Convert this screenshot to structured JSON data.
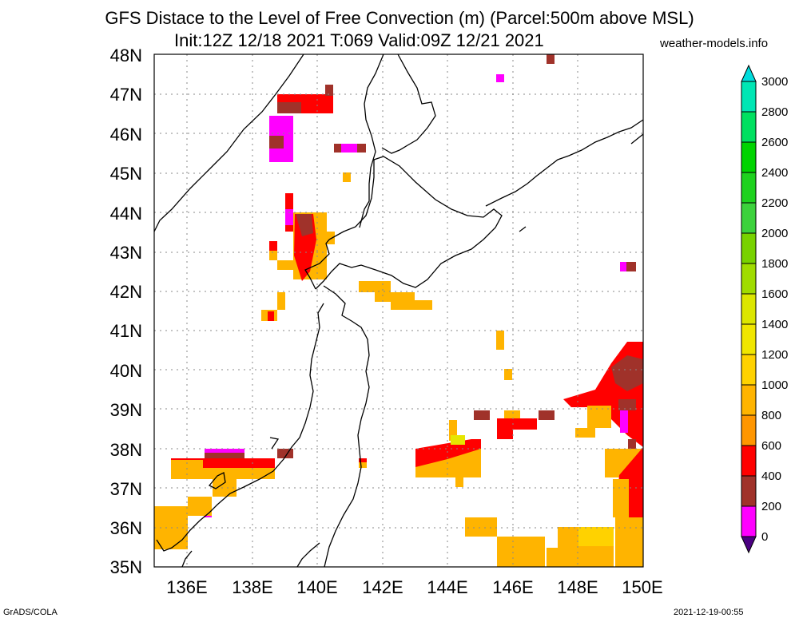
{
  "title": {
    "line1": "GFS Distace to the Level of Free Convection (m) (Parcel:500m above MSL)",
    "line2": "Init:12Z 12/18 2021 T:069 Valid:09Z 12/21 2021"
  },
  "site": "weather-models.info",
  "footer": {
    "left": "GrADS/COLA",
    "right": "2021-12-19-00:55"
  },
  "lat_labels": [
    "48N",
    "47N",
    "46N",
    "45N",
    "44N",
    "43N",
    "42N",
    "41N",
    "40N",
    "39N",
    "38N",
    "37N",
    "36N",
    "35N"
  ],
  "lon_labels": [
    "136E",
    "138E",
    "140E",
    "142E",
    "144E",
    "146E",
    "148E",
    "150E"
  ],
  "colorbar": {
    "labels": [
      "3000",
      "2800",
      "2600",
      "2400",
      "2200",
      "2000",
      "1800",
      "1600",
      "1400",
      "1200",
      "1000",
      "800",
      "600",
      "400",
      "200",
      "0"
    ],
    "colors": [
      "#00dcdc",
      "#00e6b4",
      "#00e060",
      "#00d400",
      "#1ed21e",
      "#3cd23c",
      "#78d200",
      "#a0dc00",
      "#dce600",
      "#f0e600",
      "#ffd200",
      "#ffb400",
      "#ff9600",
      "#ff0000",
      "#a0322a",
      "#ff00ff",
      "#4b0082"
    ]
  },
  "extent": {
    "lon_min": 135,
    "lon_max": 150,
    "lat_min": 35,
    "lat_max": 48
  }
}
